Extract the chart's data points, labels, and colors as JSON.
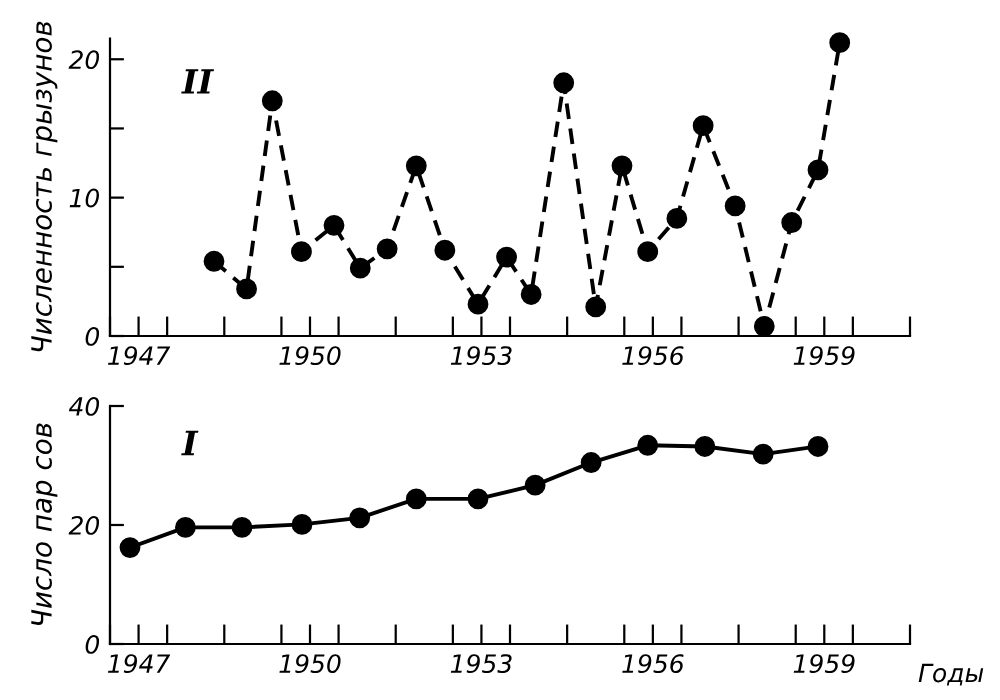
{
  "chart_data": [
    {
      "type": "line",
      "ylabel": "Численность грызунов",
      "annotations": [
        "II"
      ],
      "marker": "circle",
      "line_style": "dashed",
      "grid": false,
      "x": [
        1948.82,
        1949.39,
        1949.84,
        1950.35,
        1950.92,
        1951.38,
        1951.85,
        1952.36,
        1952.86,
        1953.44,
        1953.94,
        1954.37,
        1954.94,
        1955.5,
        1955.96,
        1956.41,
        1956.92,
        1957.38,
        1957.94,
        1958.45,
        1958.93,
        1959.39,
        1959.77
      ],
      "series": [
        {
          "color": "#000000",
          "values": [
            5.4,
            3.4,
            17,
            6.1,
            8,
            4.9,
            6.3,
            12.3,
            6.2,
            2.3,
            5.7,
            3,
            18.3,
            2.1,
            12.3,
            6.1,
            8.5,
            15.2,
            9.4,
            0.7,
            8.2,
            12,
            21.2
          ]
        }
      ],
      "xlim": [
        1947,
        1961
      ],
      "xticks": [
        {
          "value": 1947,
          "label": null
        },
        {
          "value": 1947.5,
          "label": "1947"
        },
        {
          "value": 1948,
          "label": null
        },
        {
          "value": 1949,
          "label": null
        },
        {
          "value": 1950,
          "label": null
        },
        {
          "value": 1950.5,
          "label": "1950"
        },
        {
          "value": 1951,
          "label": null
        },
        {
          "value": 1952,
          "label": null
        },
        {
          "value": 1953,
          "label": null
        },
        {
          "value": 1953.5,
          "label": "1953"
        },
        {
          "value": 1954,
          "label": null
        },
        {
          "value": 1955,
          "label": null
        },
        {
          "value": 1956,
          "label": null
        },
        {
          "value": 1956.5,
          "label": "1956"
        },
        {
          "value": 1957,
          "label": null
        },
        {
          "value": 1958,
          "label": null
        },
        {
          "value": 1959,
          "label": null
        },
        {
          "value": 1959.5,
          "label": "1959"
        },
        {
          "value": 1960,
          "label": null
        },
        {
          "value": 1961,
          "label": null
        }
      ],
      "ylim": [
        0,
        21.5
      ],
      "yticks": [
        0,
        {
          "value": 5,
          "label": null
        },
        10,
        {
          "value": 15,
          "label": null
        },
        20
      ]
    },
    {
      "type": "line",
      "ylabel": "Число пар сов",
      "xlabel": "Годы",
      "annotations": [
        "I"
      ],
      "marker": "circle",
      "line_style": "solid",
      "grid": false,
      "x": [
        1947.35,
        1948.32,
        1949.31,
        1950.36,
        1951.37,
        1952.36,
        1953.44,
        1954.44,
        1955.42,
        1956.41,
        1957.41,
        1958.43,
        1959.39
      ],
      "series": [
        {
          "color": "#000000",
          "values": [
            16.2,
            19.6,
            19.6,
            20.1,
            21.2,
            24.4,
            24.4,
            26.7,
            30.5,
            33.4,
            33.2,
            31.9,
            33.2
          ]
        }
      ],
      "xlim": [
        1947,
        1961
      ],
      "xticks": [
        {
          "value": 1947,
          "label": null
        },
        {
          "value": 1947.5,
          "label": "1947"
        },
        {
          "value": 1948,
          "label": null
        },
        {
          "value": 1949,
          "label": null
        },
        {
          "value": 1950,
          "label": null
        },
        {
          "value": 1950.5,
          "label": "1950"
        },
        {
          "value": 1951,
          "label": null
        },
        {
          "value": 1952,
          "label": null
        },
        {
          "value": 1953,
          "label": null
        },
        {
          "value": 1953.5,
          "label": "1953"
        },
        {
          "value": 1954,
          "label": null
        },
        {
          "value": 1955,
          "label": null
        },
        {
          "value": 1956,
          "label": null
        },
        {
          "value": 1956.5,
          "label": "1956"
        },
        {
          "value": 1957,
          "label": null
        },
        {
          "value": 1958,
          "label": null
        },
        {
          "value": 1959,
          "label": null
        },
        {
          "value": 1959.5,
          "label": "1959"
        },
        {
          "value": 1960,
          "label": null
        },
        {
          "value": 1961,
          "label": null
        }
      ],
      "ylim": [
        0,
        40
      ],
      "yticks": [
        0,
        20,
        40
      ]
    }
  ]
}
